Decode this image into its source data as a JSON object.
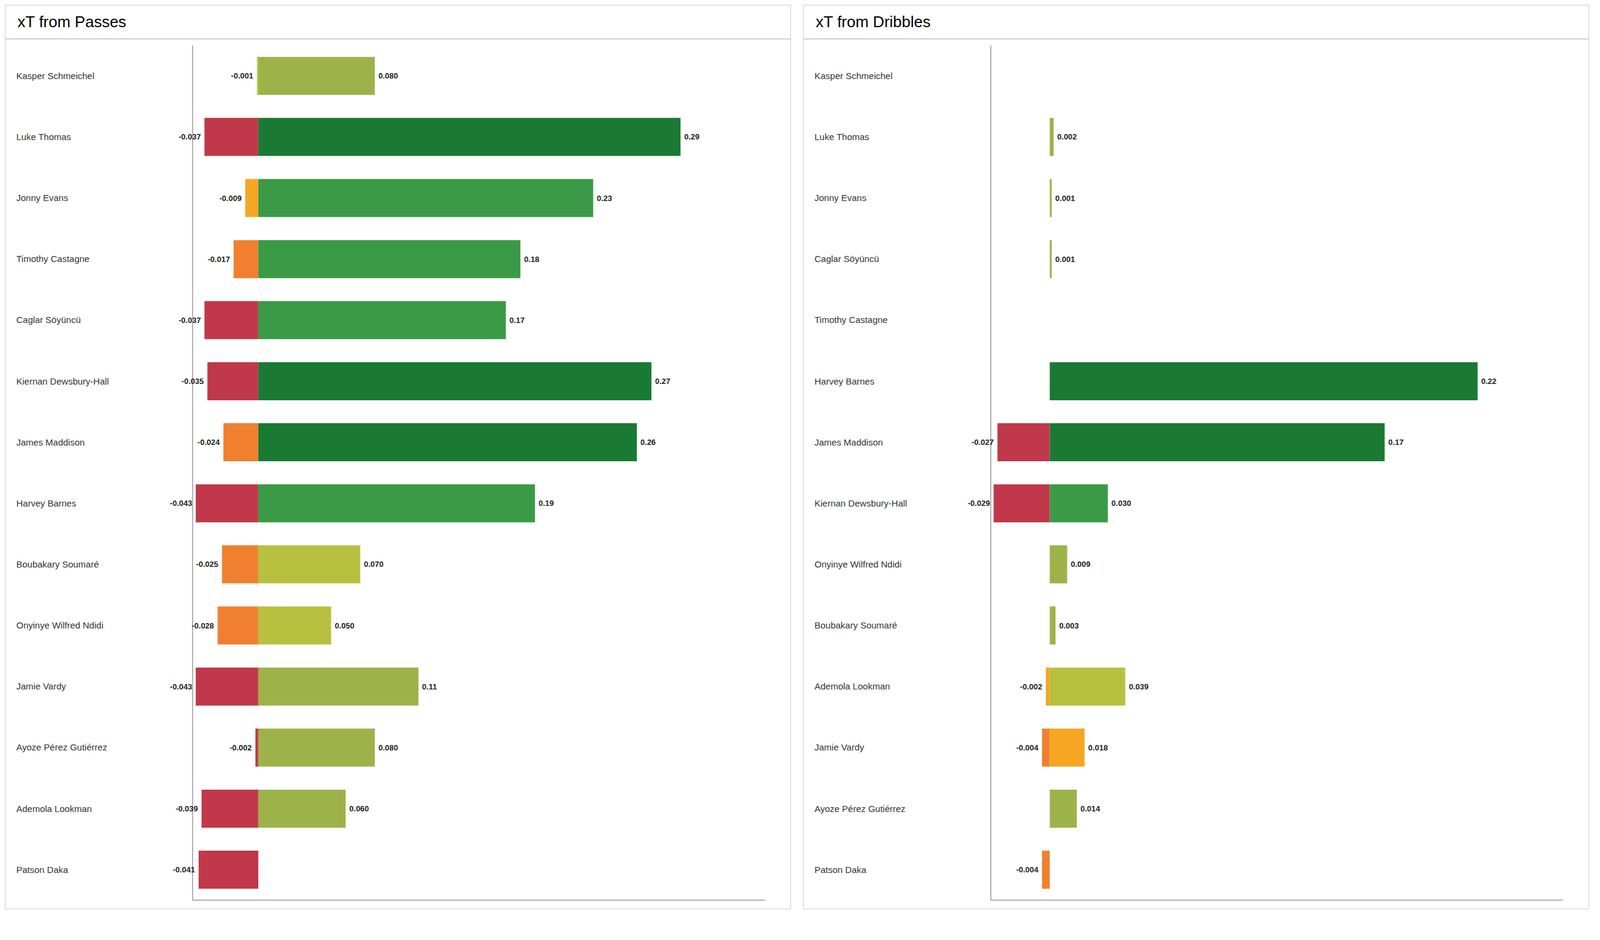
{
  "chart_data": [
    {
      "type": "bar",
      "title": "xT from Passes",
      "orientation": "horizontal",
      "stacked": true,
      "data_labels": true,
      "tick_labels": "y",
      "grid": false,
      "categories": [
        "Kasper Schmeichel",
        "Luke Thomas",
        "Jonny Evans",
        "Timothy Castagne",
        "Caglar Söyüncü",
        "Kiernan Dewsbury-Hall",
        "James Maddison",
        "Harvey Barnes",
        "Boubakary Soumaré",
        "Onyinye Wilfred Ndidi",
        "Jamie Vardy",
        "Ayoze Pérez Gutiérrez",
        "Ademola Lookman",
        "Patson Daka"
      ],
      "xlim": [
        -0.04515,
        0.348
      ],
      "series": [
        {
          "values": [
            -0.001,
            -0.037,
            -0.009,
            -0.017,
            -0.037,
            -0.035,
            -0.024,
            -0.043,
            -0.025,
            -0.028,
            -0.043,
            -0.002,
            -0.039,
            -0.041
          ],
          "value_labels": [
            "-0.001",
            "-0.037",
            "-0.009",
            "-0.017",
            "-0.037",
            "-0.035",
            "-0.024",
            "-0.043",
            "-0.025",
            "-0.028",
            "-0.043",
            "-0.002",
            "-0.039",
            "-0.041"
          ],
          "colors": [
            "#b8c842",
            "#c0384a",
            "#f5a623",
            "#f08030",
            "#c0384a",
            "#c0384a",
            "#f08030",
            "#c0384a",
            "#f08030",
            "#f08030",
            "#c0384a",
            "#c0384a",
            "#c0384a",
            "#c0384a"
          ]
        },
        {
          "values": [
            0.08,
            0.29,
            0.23,
            0.18,
            0.17,
            0.27,
            0.26,
            0.19,
            0.07,
            0.05,
            0.11,
            0.08,
            0.06,
            0.0
          ],
          "value_labels": [
            "0.080",
            "0.29",
            "0.23",
            "0.18",
            "0.17",
            "0.27",
            "0.26",
            "0.19",
            "0.070",
            "0.050",
            "0.11",
            "0.080",
            "0.060",
            "0"
          ],
          "colors": [
            "#9db34a",
            "#1a7a34",
            "#3a9a45",
            "#3a9a45",
            "#3a9a45",
            "#1a7a34",
            "#1a7a34",
            "#3a9a45",
            "#b8c040",
            "#b8c040",
            "#9db34a",
            "#9db34a",
            "#9db34a",
            "#9db34a"
          ]
        }
      ]
    },
    {
      "type": "bar",
      "title": "xT from Dribbles",
      "orientation": "horizontal",
      "stacked": true,
      "data_labels": true,
      "tick_labels": "y",
      "grid": false,
      "categories": [
        "Kasper Schmeichel",
        "Luke Thomas",
        "Jonny Evans",
        "Caglar Söyüncü",
        "Timothy Castagne",
        "Harvey Barnes",
        "James Maddison",
        "Kiernan Dewsbury-Hall",
        "Onyinye Wilfred Ndidi",
        "Boubakary Soumaré",
        "Ademola Lookman",
        "Jamie Vardy",
        "Ayoze Pérez Gutiérrez",
        "Patson Daka"
      ],
      "xlim": [
        -0.03045,
        0.2652
      ],
      "series": [
        {
          "values": [
            0,
            0,
            0,
            0,
            0,
            0,
            -0.027,
            -0.029,
            0,
            0,
            -0.002,
            -0.004,
            0,
            -0.004
          ],
          "value_labels": [
            "0",
            "0",
            "0",
            "0",
            "0",
            "0",
            "-0.027",
            "-0.029",
            "0",
            "0",
            "-0.002",
            "-0.004",
            "0",
            "-0.004"
          ],
          "colors": [
            "#9db34a",
            "#9db34a",
            "#9db34a",
            "#9db34a",
            "#9db34a",
            "#9db34a",
            "#c0384a",
            "#c0384a",
            "#9db34a",
            "#9db34a",
            "#f5a623",
            "#f08030",
            "#9db34a",
            "#f08030"
          ]
        },
        {
          "values": [
            0,
            0.002,
            0.001,
            0.001,
            0,
            0.221,
            0.173,
            0.03,
            0.009,
            0.003,
            0.039,
            0.018,
            0.014,
            0
          ],
          "value_labels": [
            "0",
            "0.002",
            "0.001",
            "0.001",
            "0",
            "0.22",
            "0.17",
            "0.030",
            "0.009",
            "0.003",
            "0.039",
            "0.018",
            "0.014",
            "0"
          ],
          "colors": [
            "#9db34a",
            "#9db34a",
            "#9db34a",
            "#9db34a",
            "#9db34a",
            "#1a7a34",
            "#1a7a34",
            "#3a9a45",
            "#9db34a",
            "#9db34a",
            "#b8c040",
            "#f5a623",
            "#9db34a",
            "#9db34a"
          ]
        }
      ]
    }
  ]
}
